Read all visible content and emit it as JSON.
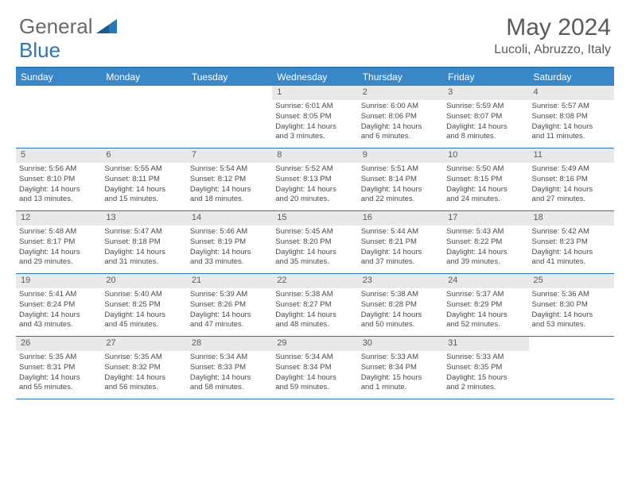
{
  "brand": {
    "part1": "General",
    "part2": "Blue"
  },
  "title": "May 2024",
  "location": "Lucoli, Abruzzo, Italy",
  "colors": {
    "header_bar": "#3a87c7",
    "rule": "#2b77b5",
    "daynum_bg": "#e8e9ea",
    "text": "#5a5a5a",
    "logo_gray": "#6a6a6a",
    "logo_blue": "#2b77b5"
  },
  "weekdays": [
    "Sunday",
    "Monday",
    "Tuesday",
    "Wednesday",
    "Thursday",
    "Friday",
    "Saturday"
  ],
  "weeks": [
    [
      null,
      null,
      null,
      {
        "n": "1",
        "sr": "Sunrise: 6:01 AM",
        "ss": "Sunset: 8:05 PM",
        "d1": "Daylight: 14 hours",
        "d2": "and 3 minutes."
      },
      {
        "n": "2",
        "sr": "Sunrise: 6:00 AM",
        "ss": "Sunset: 8:06 PM",
        "d1": "Daylight: 14 hours",
        "d2": "and 6 minutes."
      },
      {
        "n": "3",
        "sr": "Sunrise: 5:59 AM",
        "ss": "Sunset: 8:07 PM",
        "d1": "Daylight: 14 hours",
        "d2": "and 8 minutes."
      },
      {
        "n": "4",
        "sr": "Sunrise: 5:57 AM",
        "ss": "Sunset: 8:08 PM",
        "d1": "Daylight: 14 hours",
        "d2": "and 11 minutes."
      }
    ],
    [
      {
        "n": "5",
        "sr": "Sunrise: 5:56 AM",
        "ss": "Sunset: 8:10 PM",
        "d1": "Daylight: 14 hours",
        "d2": "and 13 minutes."
      },
      {
        "n": "6",
        "sr": "Sunrise: 5:55 AM",
        "ss": "Sunset: 8:11 PM",
        "d1": "Daylight: 14 hours",
        "d2": "and 15 minutes."
      },
      {
        "n": "7",
        "sr": "Sunrise: 5:54 AM",
        "ss": "Sunset: 8:12 PM",
        "d1": "Daylight: 14 hours",
        "d2": "and 18 minutes."
      },
      {
        "n": "8",
        "sr": "Sunrise: 5:52 AM",
        "ss": "Sunset: 8:13 PM",
        "d1": "Daylight: 14 hours",
        "d2": "and 20 minutes."
      },
      {
        "n": "9",
        "sr": "Sunrise: 5:51 AM",
        "ss": "Sunset: 8:14 PM",
        "d1": "Daylight: 14 hours",
        "d2": "and 22 minutes."
      },
      {
        "n": "10",
        "sr": "Sunrise: 5:50 AM",
        "ss": "Sunset: 8:15 PM",
        "d1": "Daylight: 14 hours",
        "d2": "and 24 minutes."
      },
      {
        "n": "11",
        "sr": "Sunrise: 5:49 AM",
        "ss": "Sunset: 8:16 PM",
        "d1": "Daylight: 14 hours",
        "d2": "and 27 minutes."
      }
    ],
    [
      {
        "n": "12",
        "sr": "Sunrise: 5:48 AM",
        "ss": "Sunset: 8:17 PM",
        "d1": "Daylight: 14 hours",
        "d2": "and 29 minutes."
      },
      {
        "n": "13",
        "sr": "Sunrise: 5:47 AM",
        "ss": "Sunset: 8:18 PM",
        "d1": "Daylight: 14 hours",
        "d2": "and 31 minutes."
      },
      {
        "n": "14",
        "sr": "Sunrise: 5:46 AM",
        "ss": "Sunset: 8:19 PM",
        "d1": "Daylight: 14 hours",
        "d2": "and 33 minutes."
      },
      {
        "n": "15",
        "sr": "Sunrise: 5:45 AM",
        "ss": "Sunset: 8:20 PM",
        "d1": "Daylight: 14 hours",
        "d2": "and 35 minutes."
      },
      {
        "n": "16",
        "sr": "Sunrise: 5:44 AM",
        "ss": "Sunset: 8:21 PM",
        "d1": "Daylight: 14 hours",
        "d2": "and 37 minutes."
      },
      {
        "n": "17",
        "sr": "Sunrise: 5:43 AM",
        "ss": "Sunset: 8:22 PM",
        "d1": "Daylight: 14 hours",
        "d2": "and 39 minutes."
      },
      {
        "n": "18",
        "sr": "Sunrise: 5:42 AM",
        "ss": "Sunset: 8:23 PM",
        "d1": "Daylight: 14 hours",
        "d2": "and 41 minutes."
      }
    ],
    [
      {
        "n": "19",
        "sr": "Sunrise: 5:41 AM",
        "ss": "Sunset: 8:24 PM",
        "d1": "Daylight: 14 hours",
        "d2": "and 43 minutes."
      },
      {
        "n": "20",
        "sr": "Sunrise: 5:40 AM",
        "ss": "Sunset: 8:25 PM",
        "d1": "Daylight: 14 hours",
        "d2": "and 45 minutes."
      },
      {
        "n": "21",
        "sr": "Sunrise: 5:39 AM",
        "ss": "Sunset: 8:26 PM",
        "d1": "Daylight: 14 hours",
        "d2": "and 47 minutes."
      },
      {
        "n": "22",
        "sr": "Sunrise: 5:38 AM",
        "ss": "Sunset: 8:27 PM",
        "d1": "Daylight: 14 hours",
        "d2": "and 48 minutes."
      },
      {
        "n": "23",
        "sr": "Sunrise: 5:38 AM",
        "ss": "Sunset: 8:28 PM",
        "d1": "Daylight: 14 hours",
        "d2": "and 50 minutes."
      },
      {
        "n": "24",
        "sr": "Sunrise: 5:37 AM",
        "ss": "Sunset: 8:29 PM",
        "d1": "Daylight: 14 hours",
        "d2": "and 52 minutes."
      },
      {
        "n": "25",
        "sr": "Sunrise: 5:36 AM",
        "ss": "Sunset: 8:30 PM",
        "d1": "Daylight: 14 hours",
        "d2": "and 53 minutes."
      }
    ],
    [
      {
        "n": "26",
        "sr": "Sunrise: 5:35 AM",
        "ss": "Sunset: 8:31 PM",
        "d1": "Daylight: 14 hours",
        "d2": "and 55 minutes."
      },
      {
        "n": "27",
        "sr": "Sunrise: 5:35 AM",
        "ss": "Sunset: 8:32 PM",
        "d1": "Daylight: 14 hours",
        "d2": "and 56 minutes."
      },
      {
        "n": "28",
        "sr": "Sunrise: 5:34 AM",
        "ss": "Sunset: 8:33 PM",
        "d1": "Daylight: 14 hours",
        "d2": "and 58 minutes."
      },
      {
        "n": "29",
        "sr": "Sunrise: 5:34 AM",
        "ss": "Sunset: 8:34 PM",
        "d1": "Daylight: 14 hours",
        "d2": "and 59 minutes."
      },
      {
        "n": "30",
        "sr": "Sunrise: 5:33 AM",
        "ss": "Sunset: 8:34 PM",
        "d1": "Daylight: 15 hours",
        "d2": "and 1 minute."
      },
      {
        "n": "31",
        "sr": "Sunrise: 5:33 AM",
        "ss": "Sunset: 8:35 PM",
        "d1": "Daylight: 15 hours",
        "d2": "and 2 minutes."
      },
      null
    ]
  ]
}
